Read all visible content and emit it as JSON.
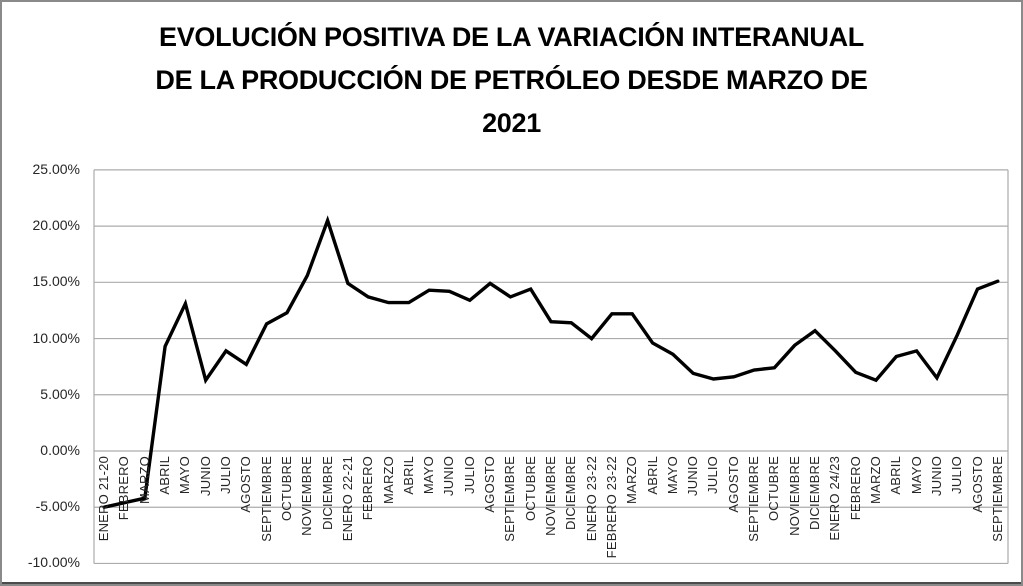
{
  "title": {
    "lines": [
      "EVOLUCIÓN POSITIVA DE LA VARIACIÓN INTERANUAL",
      "DE LA PRODUCCIÓN DE PETRÓLEO DESDE MARZO DE",
      "2021"
    ]
  },
  "chart_data": {
    "type": "line",
    "title": "EVOLUCIÓN POSITIVA DE LA VARIACIÓN INTERANUAL DE LA PRODUCCIÓN DE PETRÓLEO DESDE MARZO DE 2021",
    "xlabel": "",
    "ylabel": "",
    "grid": true,
    "legend": "none",
    "line_color": "#000000",
    "gridline_color": "#acacac",
    "axis_text_color": "#262626",
    "ylim": [
      -10,
      25
    ],
    "y_tick_step": 5,
    "y_tick_labels": [
      "25.00%",
      "20.00%",
      "15.00%",
      "10.00%",
      "5.00%",
      "0.00%",
      "-5.00%",
      "-10.00%"
    ],
    "categories": [
      "ENERO 21-20",
      "FEBRERO",
      "MARZO",
      "ABRIL",
      "MAYO",
      "JUNIO",
      "JULIO",
      "AGOSTO",
      "SEPTIEMBRE",
      "OCTUBRE",
      "NOVIEMBRE",
      "DICIEMBRE",
      "ENERO 22-21",
      "FEBRERO",
      "MARZO",
      "ABRIL",
      "MAYO",
      "JUNIO",
      "JULIO",
      "AGOSTO",
      "SEPTIEMBRE",
      "OCTUBRE",
      "NOVIEMBRE",
      "DICIEMBRE",
      "ENERO 23-22",
      "FEBRERO 23-22",
      "MARZO",
      "ABRIL",
      "MAYO",
      "JUNIO",
      "JULIO",
      "AGOSTO",
      "SEPTIEMBRE",
      "OCTUBRE",
      "NOVIEMBRE",
      "DICIEMBRE",
      "ENERO 24/23",
      "FEBRERO",
      "MARZO",
      "ABRIL",
      "MAYO",
      "JUNIO",
      "JULIO",
      "AGOSTO",
      "SEPTIEMBRE"
    ],
    "values": [
      -5.0,
      -4.6,
      -4.2,
      9.3,
      13.1,
      6.3,
      8.9,
      7.7,
      11.3,
      12.3,
      15.6,
      20.5,
      14.9,
      13.7,
      13.2,
      13.2,
      14.3,
      14.2,
      13.4,
      14.9,
      13.7,
      14.4,
      11.5,
      11.4,
      10.0,
      12.2,
      12.2,
      9.6,
      8.6,
      6.9,
      6.4,
      6.6,
      7.2,
      7.4,
      9.4,
      10.7,
      8.9,
      7.0,
      6.3,
      8.4,
      8.9,
      6.5,
      10.3,
      14.4,
      15.1
    ]
  }
}
